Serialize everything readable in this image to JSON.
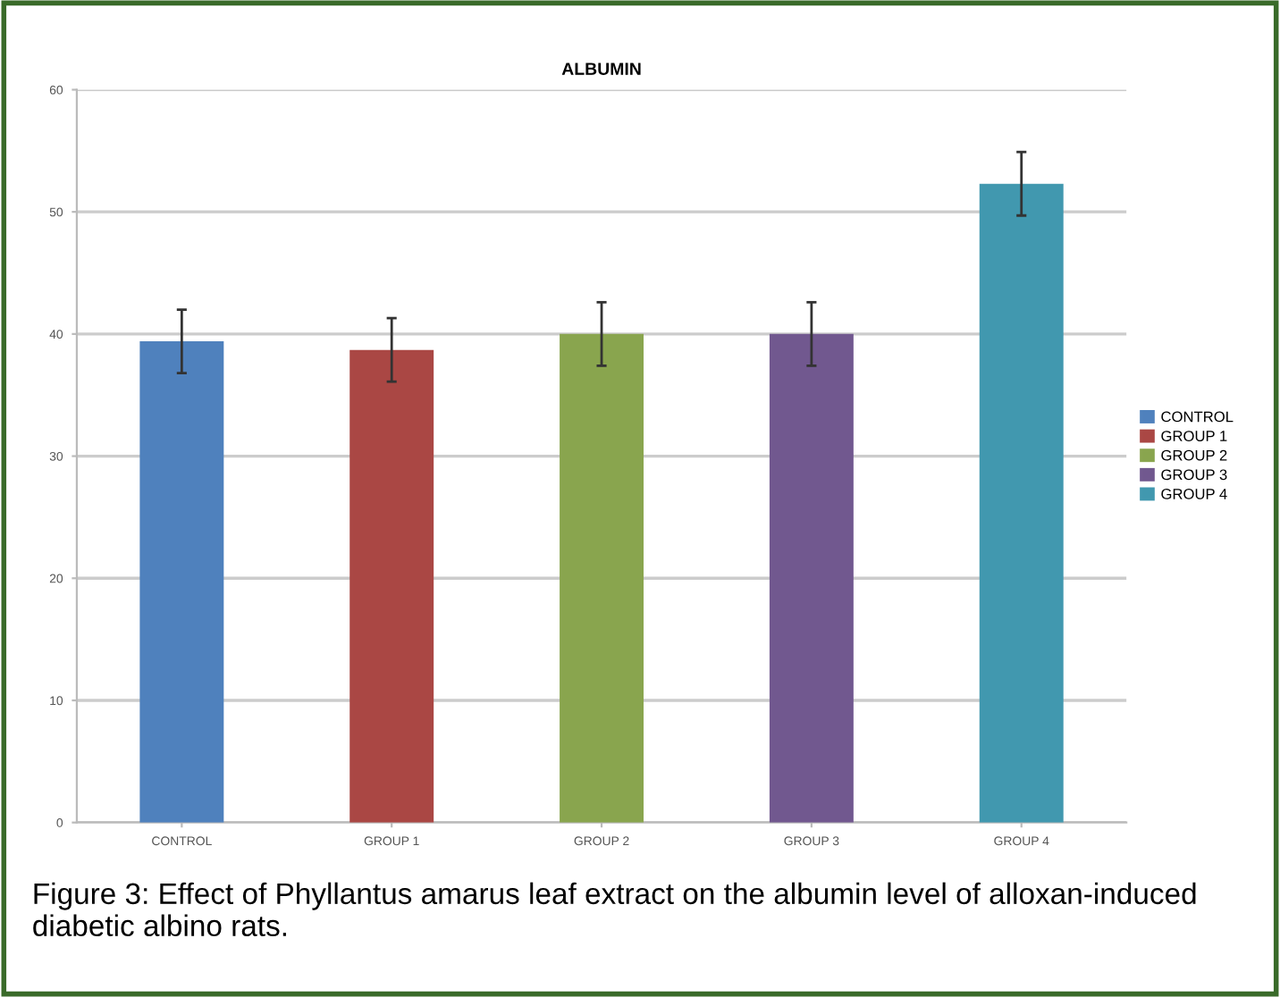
{
  "chart_data": {
    "type": "bar",
    "title": "ALBUMIN",
    "categories": [
      "CONTROL",
      "GROUP 1",
      "GROUP 2",
      "GROUP 3",
      "GROUP 4"
    ],
    "series": [
      {
        "name": "CONTROL",
        "color": "#4f81bd",
        "values": [
          39.4,
          null,
          null,
          null,
          null
        ],
        "errors": [
          2.6,
          null,
          null,
          null,
          null
        ]
      },
      {
        "name": "GROUP 1",
        "color": "#aa4744",
        "values": [
          null,
          38.7,
          null,
          null,
          null
        ],
        "errors": [
          null,
          2.6,
          null,
          null,
          null
        ]
      },
      {
        "name": "GROUP 2",
        "color": "#89a54e",
        "values": [
          null,
          null,
          40.0,
          null,
          null
        ],
        "errors": [
          null,
          null,
          2.6,
          null,
          null
        ]
      },
      {
        "name": "GROUP 3",
        "color": "#71588f",
        "values": [
          null,
          null,
          null,
          40.0,
          null
        ],
        "errors": [
          null,
          null,
          null,
          2.6,
          null
        ]
      },
      {
        "name": "GROUP 4",
        "color": "#4198af",
        "values": [
          null,
          null,
          null,
          null,
          52.3
        ],
        "errors": [
          null,
          null,
          null,
          null,
          2.6
        ]
      }
    ],
    "ylim": [
      0,
      60
    ],
    "yticks": [
      0,
      10,
      20,
      30,
      40,
      50,
      60
    ],
    "grid": "y",
    "legend": "right",
    "annotations": [
      "Figure 3: Effect of Phyllantus amarus leaf extract on the albumin level of alloxan-induced diabetic albino rats."
    ]
  }
}
